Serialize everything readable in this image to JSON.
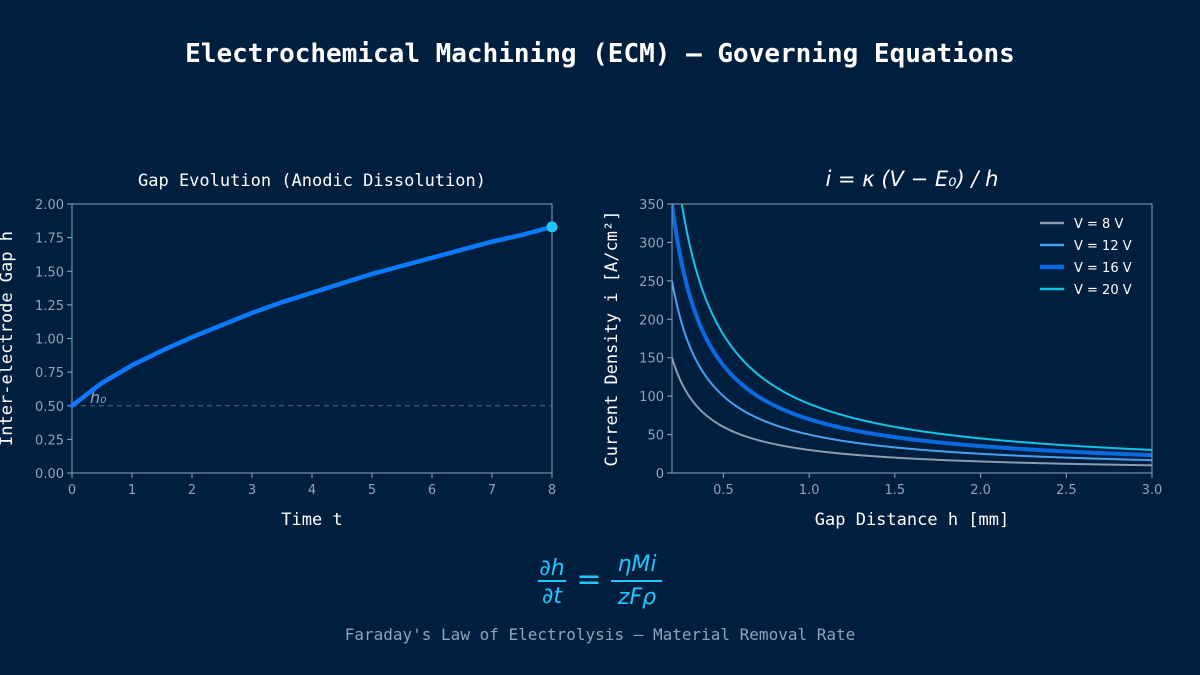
{
  "title": "Electrochemical Machining (ECM) — Governing Equations",
  "equation": {
    "lhs_num": "∂h",
    "lhs_den": "∂t",
    "rhs_num": "ηMi",
    "rhs_den": "zFρ"
  },
  "subtitle": "Faraday's Law of Electrolysis — Material Removal Rate",
  "colors": {
    "background": "#001f3f",
    "axis": "#8fa3b8",
    "equation": "#1ec8ff"
  },
  "chart_data": [
    {
      "type": "line",
      "title": "Gap Evolution (Anodic Dissolution)",
      "xlabel": "Time  t",
      "ylabel": "Inter-electrode Gap  h",
      "xlim": [
        0,
        8
      ],
      "ylim": [
        0,
        2
      ],
      "xticks": [
        "0",
        "1",
        "2",
        "3",
        "4",
        "5",
        "6",
        "7",
        "8"
      ],
      "yticks": [
        "0.00",
        "0.25",
        "0.50",
        "0.75",
        "1.00",
        "1.25",
        "1.50",
        "1.75",
        "2.00"
      ],
      "series": [
        {
          "x": [
            0,
            0.5,
            1,
            1.5,
            2,
            2.5,
            3,
            3.5,
            4,
            4.5,
            5,
            5.5,
            6,
            6.5,
            7,
            7.5,
            8
          ],
          "y": [
            0.5,
            0.67,
            0.8,
            0.91,
            1.01,
            1.1,
            1.19,
            1.27,
            1.34,
            1.41,
            1.48,
            1.54,
            1.6,
            1.66,
            1.72,
            1.77,
            1.83
          ],
          "color": "#0a7aff"
        }
      ],
      "reference_line": {
        "y": 0.5,
        "label": "h₀",
        "style": "dashed"
      },
      "end_marker": {
        "x": 8,
        "y": 1.83,
        "color": "#1ec8ff"
      },
      "grid": false
    },
    {
      "type": "line",
      "title": "i = κ (V − E₀) / h",
      "xlabel": "Gap Distance  h  [mm]",
      "ylabel": "Current Density  i  [A/cm²]",
      "xlim": [
        0.2,
        3.0
      ],
      "ylim": [
        0,
        350
      ],
      "xticks": [
        "0.5",
        "1.0",
        "1.5",
        "2.0",
        "2.5",
        "3.0"
      ],
      "yticks": [
        "0",
        "50",
        "100",
        "150",
        "200",
        "250",
        "300",
        "350"
      ],
      "legend": "top-right",
      "grid": false,
      "series": [
        {
          "name": "V = 8 V",
          "numerator": 30,
          "color": "#8a9bb0",
          "width": 2
        },
        {
          "name": "V = 12 V",
          "numerator": 50,
          "color": "#4a9ff0",
          "width": 2
        },
        {
          "name": "V = 16 V",
          "numerator": 70,
          "color": "#0a6ae0",
          "width": 4
        },
        {
          "name": "V = 20 V",
          "numerator": 90,
          "color": "#12c4e8",
          "width": 2
        }
      ]
    }
  ]
}
